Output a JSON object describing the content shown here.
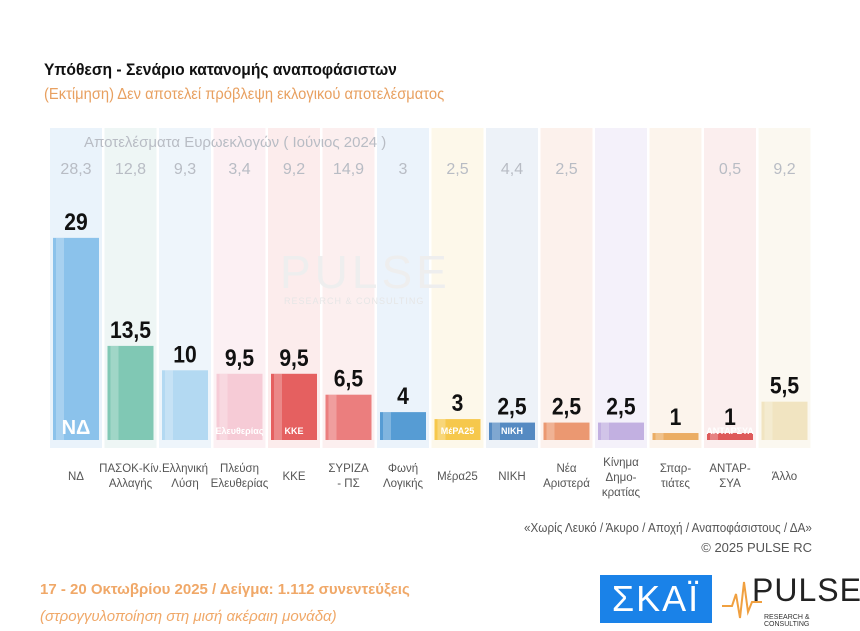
{
  "chart_data": {
    "type": "bar",
    "title": "Υπόθεση - Σενάριο κατανομής αναποφάσιστων",
    "subtitle": "(Εκτίμηση)   Δεν αποτελεί πρόβλεψη εκλογικού αποτελέσματος",
    "comparison_label": "Αποτελέσματα Ευρωεκλογών  ( Ιούνιος 2024 )",
    "categories": [
      "ΝΔ",
      "ΠΑΣΟΚ-Κίν. Αλλαγής",
      "Ελληνική Λύση",
      "Πλεύση Ελευθερίας",
      "ΚΚΕ",
      "ΣΥΡΙΖΑ - ΠΣ",
      "Φωνή Λογικής",
      "Μέρα25",
      "ΝΙΚΗ",
      "Νέα Αριστερά",
      "Κίνημα Δημο-κρατίας",
      "Σπαρ-τιάτες",
      "ΑΝΤΑΡ-ΣΥΑ",
      "Άλλο"
    ],
    "values": [
      29,
      13.5,
      10,
      9.5,
      9.5,
      6.5,
      4,
      3,
      2.5,
      2.5,
      2.5,
      1,
      1,
      5.5
    ],
    "value_labels": [
      "29",
      "13,5",
      "10",
      "9,5",
      "9,5",
      "6,5",
      "4",
      "3",
      "2,5",
      "2,5",
      "2,5",
      "1",
      "1",
      "5,5"
    ],
    "euro_2024_labels": [
      "28,3",
      "12,8",
      "9,3",
      "3,4",
      "9,2",
      "14,9",
      "3",
      "2,5",
      "4,4",
      "2,5",
      "",
      "",
      "0,5",
      "9,2"
    ],
    "logo_texts": [
      "ΝΔ",
      "",
      "",
      "Ελευθερίας",
      "ΚΚΕ",
      "",
      "",
      "ΜέΡΑ25",
      "ΝΙΚΗ",
      "",
      "",
      "",
      "ΑΝΤΑΡΣΥΑ",
      ""
    ],
    "colors": [
      "#7ab8e8",
      "#6cc0a8",
      "#a8d4f0",
      "#f4c4d0",
      "#e04848",
      "#e86a6a",
      "#3c8ccc",
      "#f4c030",
      "#3a78b8",
      "#e8885c",
      "#b8a4dc",
      "#e8a04c",
      "#d84040",
      "#efe0b8"
    ],
    "column_tints": [
      "#eaf3fb",
      "#eef6f5",
      "#eef5fb",
      "#fcf0f3",
      "#fcecec",
      "#fcefef",
      "#ebf3fb",
      "#fdf8ea",
      "#edf2f8",
      "#fcf1ec",
      "#f4f1fa",
      "#fcf4ec",
      "#fbeeee",
      "#fbf8f0"
    ]
  },
  "footer": {
    "note": "«Χωρίς Λευκό / Άκυρο / Αποχή / Αναποφάσιστους / ΔΑ»",
    "copyright": "©  2025  PULSE RC",
    "date_sample": "17 - 20 Οκτωβρίου 2025  /  Δείγμα:  1.112 συνεντεύξεις",
    "rounding": "(στρογγυλοποίηση στη μισή ακέραιη μονάδα)"
  },
  "logos": {
    "skai": "ΣΚΑΪ",
    "pulse": "PULSE",
    "pulse_sub": "RESEARCH & CONSULTING"
  },
  "watermark": {
    "text": "PULSE",
    "sub": "RESEARCH & CONSULTING"
  }
}
